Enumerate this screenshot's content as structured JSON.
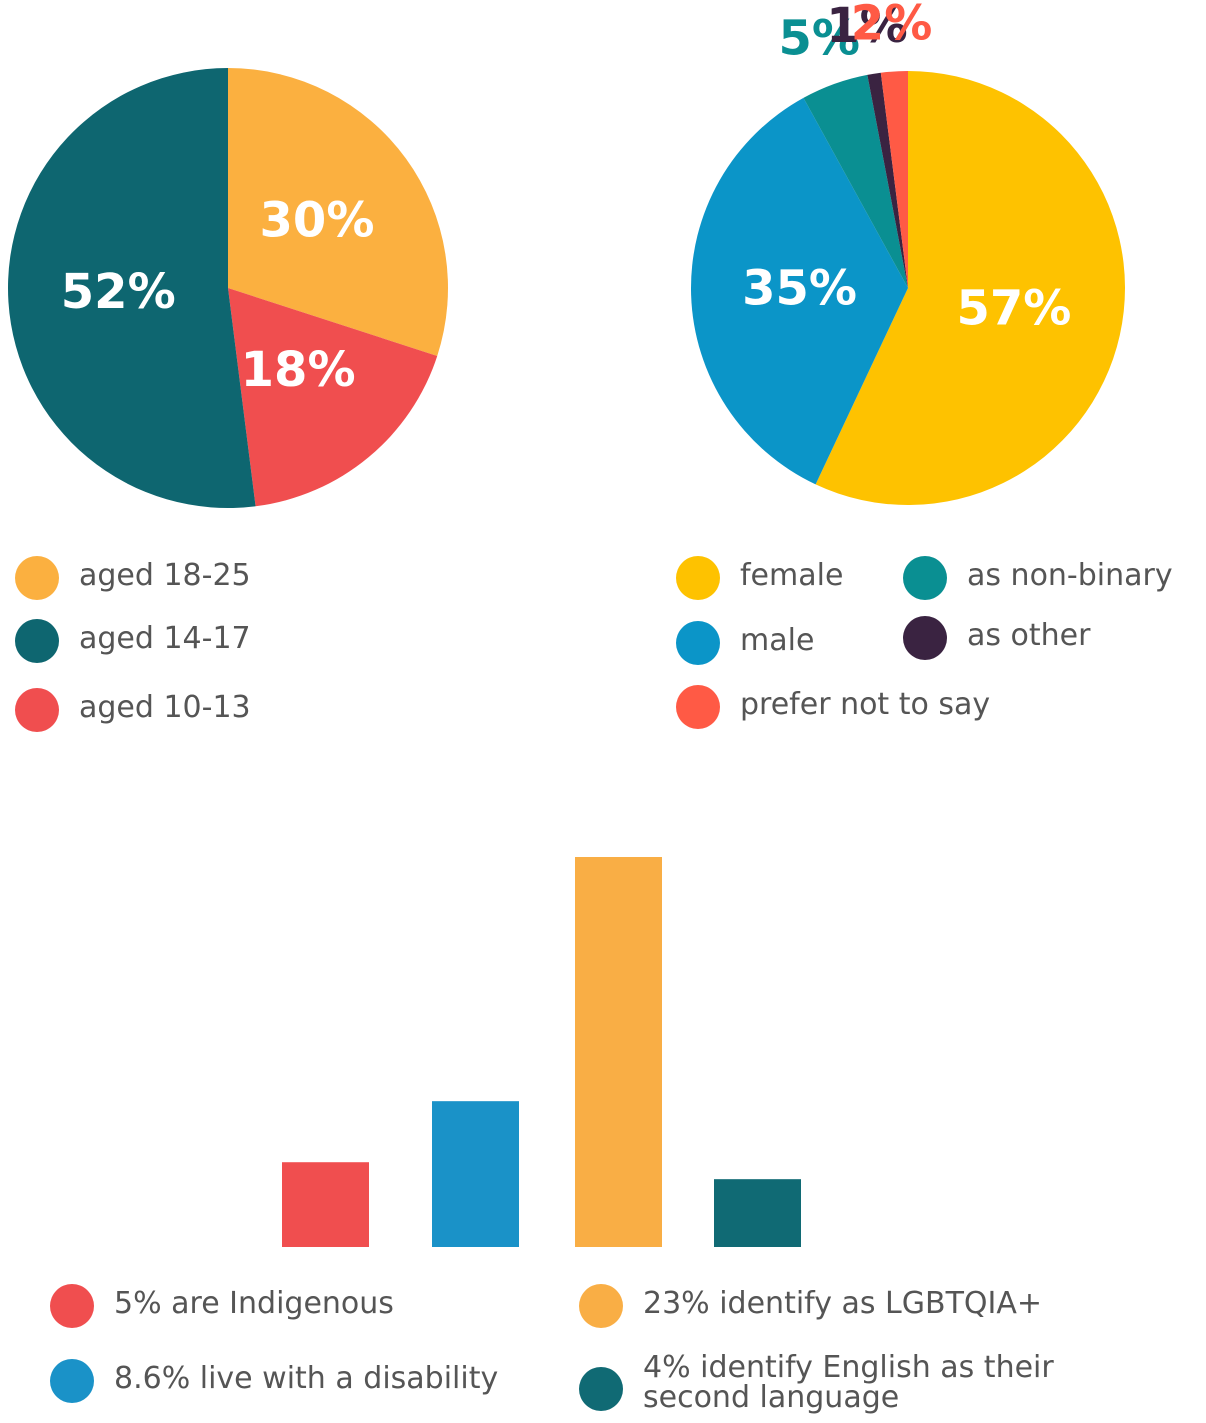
{
  "chart_data": [
    {
      "type": "pie",
      "categories": [
        "aged 18-25",
        "aged 10-13",
        "aged 14-17"
      ],
      "values": [
        30,
        18,
        52
      ],
      "value_labels": [
        "30%",
        "18%",
        "52%"
      ],
      "colors": [
        "#fbb040",
        "#f04e4f",
        "#0e6670"
      ]
    },
    {
      "type": "pie",
      "categories": [
        "female",
        "male",
        "as non-binary",
        "as other",
        "prefer not to say"
      ],
      "values": [
        57,
        35,
        5,
        1,
        2
      ],
      "value_labels": [
        "57%",
        "35%",
        "5%",
        "1%",
        "2%"
      ],
      "colors": [
        "#fec200",
        "#0b95c8",
        "#0a8f92",
        "#3a2341",
        "#ff5a45"
      ]
    },
    {
      "type": "bar",
      "categories": [
        "5% are Indigenous",
        "8.6% live with a disability",
        "23% identify as LGBTQIA+",
        "4% identify English as their second language"
      ],
      "values": [
        5,
        8.6,
        23,
        4
      ],
      "colors": [
        "#f04e4f",
        "#1a92c8",
        "#f9ae45",
        "#106a74"
      ]
    }
  ]
}
